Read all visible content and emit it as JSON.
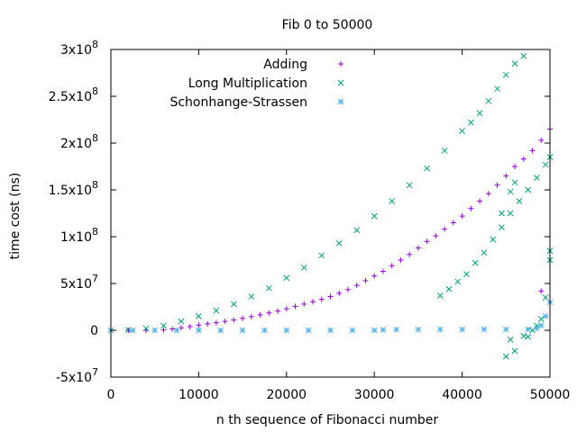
{
  "chart_data": {
    "type": "scatter",
    "title": "Fib 0 to 50000",
    "xlabel": "n th sequence of Fibonacci number",
    "ylabel": "time cost (ns)",
    "xlim": [
      0,
      50000
    ],
    "ylim": [
      -50000000,
      300000000
    ],
    "legend_position": "top-right",
    "grid": false,
    "x_ticks": [
      {
        "value": 0,
        "label": "0"
      },
      {
        "value": 10000,
        "label": "10000"
      },
      {
        "value": 20000,
        "label": "20000"
      },
      {
        "value": 30000,
        "label": "30000"
      },
      {
        "value": 40000,
        "label": "40000"
      },
      {
        "value": 50000,
        "label": "50000"
      }
    ],
    "y_ticks": [
      {
        "value": -50000000,
        "mantissa": "-5x10",
        "exp": "7"
      },
      {
        "value": 0,
        "mantissa": "0",
        "exp": ""
      },
      {
        "value": 50000000,
        "mantissa": "5x10",
        "exp": "7"
      },
      {
        "value": 100000000,
        "mantissa": "1x10",
        "exp": "8"
      },
      {
        "value": 150000000,
        "mantissa": "1.5x10",
        "exp": "8"
      },
      {
        "value": 200000000,
        "mantissa": "2x10",
        "exp": "8"
      },
      {
        "value": 250000000,
        "mantissa": "2.5x10",
        "exp": "8"
      },
      {
        "value": 300000000,
        "mantissa": "3x10",
        "exp": "8"
      }
    ],
    "series": [
      {
        "name": "Adding",
        "marker": "plus",
        "color": "#9400d3",
        "points": [
          [
            0,
            0
          ],
          [
            2000,
            0
          ],
          [
            4000,
            0
          ],
          [
            6000,
            400000
          ],
          [
            7000,
            1500000
          ],
          [
            8000,
            2700000
          ],
          [
            9000,
            3900000
          ],
          [
            10000,
            5500000
          ],
          [
            11000,
            6800000
          ],
          [
            12000,
            8000000
          ],
          [
            13000,
            9500000
          ],
          [
            14000,
            11000000
          ],
          [
            15000,
            12700000
          ],
          [
            16000,
            14500000
          ],
          [
            17000,
            16500000
          ],
          [
            18000,
            18500000
          ],
          [
            19000,
            20500000
          ],
          [
            20000,
            23000000
          ],
          [
            21000,
            25500000
          ],
          [
            22000,
            28000000
          ],
          [
            23000,
            30500000
          ],
          [
            24000,
            33000000
          ],
          [
            25000,
            36000000
          ],
          [
            26000,
            39500000
          ],
          [
            27000,
            43500000
          ],
          [
            28000,
            48000000
          ],
          [
            29000,
            53000000
          ],
          [
            30000,
            58000000
          ],
          [
            31000,
            63000000
          ],
          [
            32000,
            69000000
          ],
          [
            33000,
            75000000
          ],
          [
            34000,
            81000000
          ],
          [
            35000,
            88000000
          ],
          [
            36000,
            95000000
          ],
          [
            37000,
            101000000
          ],
          [
            38000,
            108000000
          ],
          [
            39000,
            115000000
          ],
          [
            40000,
            122000000
          ],
          [
            41000,
            130000000
          ],
          [
            42000,
            138000000
          ],
          [
            43000,
            146000000
          ],
          [
            44000,
            155000000
          ],
          [
            45000,
            165000000
          ],
          [
            46000,
            175000000
          ],
          [
            47000,
            183000000
          ],
          [
            48000,
            192000000
          ],
          [
            49000,
            203000000
          ],
          [
            50000,
            215000000
          ],
          [
            49000,
            42000000
          ]
        ]
      },
      {
        "name": "Long Multiplication",
        "marker": "cross",
        "color": "#009e73",
        "points": [
          [
            0,
            0
          ],
          [
            2000,
            500000
          ],
          [
            4000,
            2000000
          ],
          [
            6000,
            5000000
          ],
          [
            8000,
            9500000
          ],
          [
            10000,
            15000000
          ],
          [
            12000,
            21000000
          ],
          [
            14000,
            28000000
          ],
          [
            16000,
            36000000
          ],
          [
            18000,
            45000000
          ],
          [
            20000,
            56000000
          ],
          [
            22000,
            67000000
          ],
          [
            24000,
            80000000
          ],
          [
            26000,
            93000000
          ],
          [
            28000,
            107000000
          ],
          [
            30000,
            122000000
          ],
          [
            32000,
            138000000
          ],
          [
            34000,
            155000000
          ],
          [
            36000,
            173000000
          ],
          [
            38000,
            192000000
          ],
          [
            40000,
            213000000
          ],
          [
            41000,
            222000000
          ],
          [
            42000,
            232000000
          ],
          [
            43000,
            245000000
          ],
          [
            44000,
            258000000
          ],
          [
            45000,
            273000000
          ],
          [
            46000,
            285000000
          ],
          [
            47000,
            293000000
          ],
          [
            37500,
            37000000
          ],
          [
            38500,
            44000000
          ],
          [
            39500,
            52000000
          ],
          [
            40500,
            60000000
          ],
          [
            41500,
            72000000
          ],
          [
            42500,
            83000000
          ],
          [
            43500,
            97000000
          ],
          [
            44500,
            110000000
          ],
          [
            45500,
            125000000
          ],
          [
            46500,
            138000000
          ],
          [
            47500,
            150000000
          ],
          [
            48500,
            163000000
          ],
          [
            49500,
            177000000
          ],
          [
            50000,
            185000000
          ],
          [
            44500,
            125000000
          ],
          [
            45500,
            148000000
          ],
          [
            46000,
            158000000
          ],
          [
            45000,
            -28000000
          ],
          [
            45500,
            -10000000
          ],
          [
            46000,
            -22000000
          ],
          [
            47000,
            -6000000
          ],
          [
            47500,
            -7000000
          ],
          [
            48000,
            0
          ],
          [
            48500,
            5000000
          ],
          [
            49000,
            12000000
          ],
          [
            49500,
            35000000
          ],
          [
            50000,
            75000000
          ],
          [
            50000,
            85000000
          ]
        ]
      },
      {
        "name": "Schonhange-Strassen",
        "marker": "star",
        "color": "#56b4e9",
        "points": [
          [
            0,
            0
          ],
          [
            2500,
            0
          ],
          [
            5000,
            0
          ],
          [
            7500,
            0
          ],
          [
            10000,
            0
          ],
          [
            12500,
            0
          ],
          [
            15000,
            0
          ],
          [
            17500,
            0
          ],
          [
            20000,
            0
          ],
          [
            22500,
            0
          ],
          [
            25000,
            0
          ],
          [
            27500,
            0
          ],
          [
            30000,
            0
          ],
          [
            31000,
            500000
          ],
          [
            32500,
            800000
          ],
          [
            35000,
            800000
          ],
          [
            37500,
            900000
          ],
          [
            40000,
            900000
          ],
          [
            42500,
            1000000
          ],
          [
            45000,
            1000000
          ],
          [
            47500,
            1100000
          ],
          [
            48500,
            2000000
          ],
          [
            49000,
            5000000
          ],
          [
            49500,
            15000000
          ],
          [
            50000,
            30000000
          ]
        ]
      }
    ]
  }
}
